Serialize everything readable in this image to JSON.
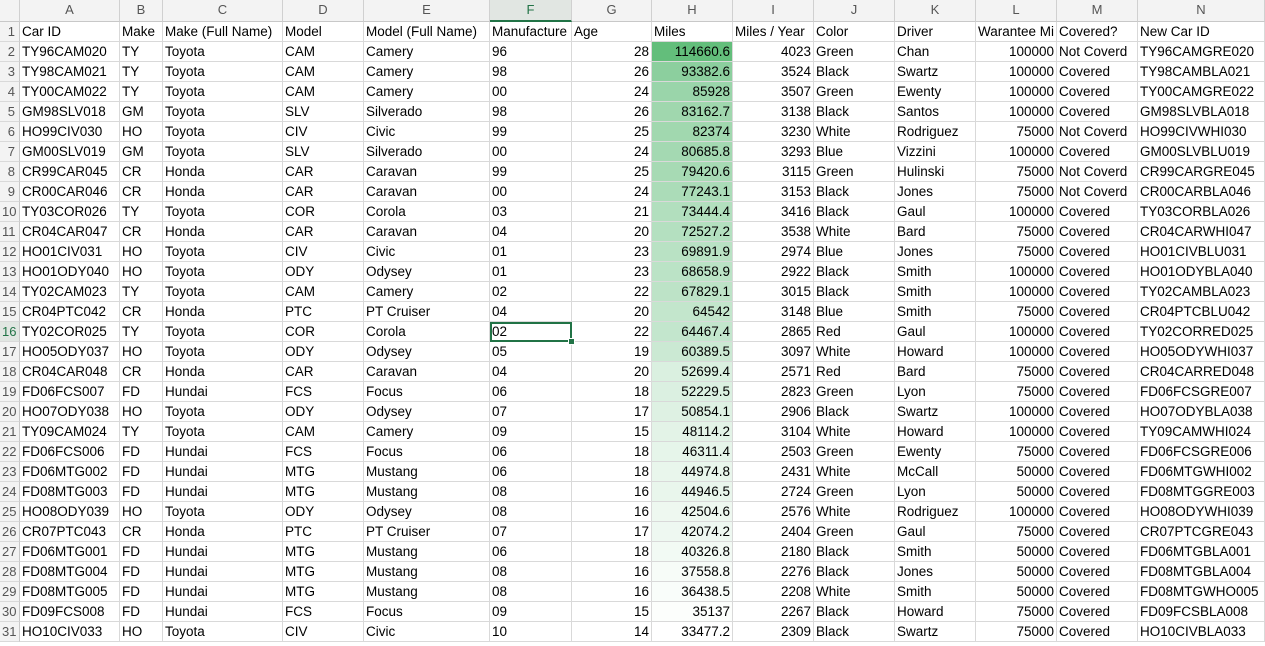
{
  "columns": [
    "A",
    "B",
    "C",
    "D",
    "E",
    "F",
    "G",
    "H",
    "I",
    "J",
    "K",
    "L",
    "M",
    "N"
  ],
  "selected_column": "F",
  "selected_row": "16",
  "headers": [
    "Car ID",
    "Make",
    "Make (Full Name)",
    "Model",
    "Model (Full Name)",
    "Manufacture",
    "Age",
    "Miles",
    "Miles / Year",
    "Color",
    "Driver",
    "Warantee Mi",
    "Covered?",
    "New Car ID"
  ],
  "row_numbers": [
    "1",
    "2",
    "3",
    "4",
    "5",
    "6",
    "7",
    "8",
    "9",
    "10",
    "11",
    "12",
    "13",
    "14",
    "15",
    "16",
    "17",
    "18",
    "19",
    "20",
    "21",
    "22",
    "23",
    "24",
    "25",
    "26",
    "27",
    "28",
    "29",
    "30",
    "31"
  ],
  "miles_color_scale": {
    "low": "#ffffff",
    "high": "#63be7b"
  },
  "miles_range": [
    33477.2,
    114660.6
  ],
  "rows": [
    [
      "TY96CAM020",
      "TY",
      "Toyota",
      "CAM",
      "Camery",
      "96",
      "28",
      "114660.6",
      "4023",
      "Green",
      "Chan",
      "100000",
      "Not Coverd",
      "TY96CAMGRE020"
    ],
    [
      "TY98CAM021",
      "TY",
      "Toyota",
      "CAM",
      "Camery",
      "98",
      "26",
      "93382.6",
      "3524",
      "Black",
      "Swartz",
      "100000",
      "Covered",
      "TY98CAMBLA021"
    ],
    [
      "TY00CAM022",
      "TY",
      "Toyota",
      "CAM",
      "Camery",
      "00",
      "24",
      "85928",
      "3507",
      "Green",
      "Ewenty",
      "100000",
      "Covered",
      "TY00CAMGRE022"
    ],
    [
      "GM98SLV018",
      "GM",
      "Toyota",
      "SLV",
      "Silverado",
      "98",
      "26",
      "83162.7",
      "3138",
      "Black",
      "Santos",
      "100000",
      "Covered",
      "GM98SLVBLA018"
    ],
    [
      "HO99CIV030",
      "HO",
      "Toyota",
      "CIV",
      "Civic",
      "99",
      "25",
      "82374",
      "3230",
      "White",
      "Rodriguez",
      "75000",
      "Not Coverd",
      "HO99CIVWHI030"
    ],
    [
      "GM00SLV019",
      "GM",
      "Toyota",
      "SLV",
      "Silverado",
      "00",
      "24",
      "80685.8",
      "3293",
      "Blue",
      "Vizzini",
      "100000",
      "Covered",
      "GM00SLVBLU019"
    ],
    [
      "CR99CAR045",
      "CR",
      "Honda",
      "CAR",
      "Caravan",
      "99",
      "25",
      "79420.6",
      "3115",
      "Green",
      "Hulinski",
      "75000",
      "Not Coverd",
      "CR99CARGRE045"
    ],
    [
      "CR00CAR046",
      "CR",
      "Honda",
      "CAR",
      "Caravan",
      "00",
      "24",
      "77243.1",
      "3153",
      "Black",
      "Jones",
      "75000",
      "Not Coverd",
      "CR00CARBLA046"
    ],
    [
      "TY03COR026",
      "TY",
      "Toyota",
      "COR",
      "Corola",
      "03",
      "21",
      "73444.4",
      "3416",
      "Black",
      "Gaul",
      "100000",
      "Covered",
      "TY03CORBLA026"
    ],
    [
      "CR04CAR047",
      "CR",
      "Honda",
      "CAR",
      "Caravan",
      "04",
      "20",
      "72527.2",
      "3538",
      "White",
      "Bard",
      "75000",
      "Covered",
      "CR04CARWHI047"
    ],
    [
      "HO01CIV031",
      "HO",
      "Toyota",
      "CIV",
      "Civic",
      "01",
      "23",
      "69891.9",
      "2974",
      "Blue",
      "Jones",
      "75000",
      "Covered",
      "HO01CIVBLU031"
    ],
    [
      "HO01ODY040",
      "HO",
      "Toyota",
      "ODY",
      "Odysey",
      "01",
      "23",
      "68658.9",
      "2922",
      "Black",
      "Smith",
      "100000",
      "Covered",
      "HO01ODYBLA040"
    ],
    [
      "TY02CAM023",
      "TY",
      "Toyota",
      "CAM",
      "Camery",
      "02",
      "22",
      "67829.1",
      "3015",
      "Black",
      "Smith",
      "100000",
      "Covered",
      "TY02CAMBLA023"
    ],
    [
      "CR04PTC042",
      "CR",
      "Honda",
      "PTC",
      "PT Cruiser",
      "04",
      "20",
      "64542",
      "3148",
      "Blue",
      "Smith",
      "75000",
      "Covered",
      "CR04PTCBLU042"
    ],
    [
      "TY02COR025",
      "TY",
      "Toyota",
      "COR",
      "Corola",
      "02",
      "22",
      "64467.4",
      "2865",
      "Red",
      "Gaul",
      "100000",
      "Covered",
      "TY02CORRED025"
    ],
    [
      "HO05ODY037",
      "HO",
      "Toyota",
      "ODY",
      "Odysey",
      "05",
      "19",
      "60389.5",
      "3097",
      "White",
      "Howard",
      "100000",
      "Covered",
      "HO05ODYWHI037"
    ],
    [
      "CR04CAR048",
      "CR",
      "Honda",
      "CAR",
      "Caravan",
      "04",
      "20",
      "52699.4",
      "2571",
      "Red",
      "Bard",
      "75000",
      "Covered",
      "CR04CARRED048"
    ],
    [
      "FD06FCS007",
      "FD",
      "Hundai",
      "FCS",
      "Focus",
      "06",
      "18",
      "52229.5",
      "2823",
      "Green",
      "Lyon",
      "75000",
      "Covered",
      "FD06FCSGRE007"
    ],
    [
      "HO07ODY038",
      "HO",
      "Toyota",
      "ODY",
      "Odysey",
      "07",
      "17",
      "50854.1",
      "2906",
      "Black",
      "Swartz",
      "100000",
      "Covered",
      "HO07ODYBLA038"
    ],
    [
      "TY09CAM024",
      "TY",
      "Toyota",
      "CAM",
      "Camery",
      "09",
      "15",
      "48114.2",
      "3104",
      "White",
      "Howard",
      "100000",
      "Covered",
      "TY09CAMWHI024"
    ],
    [
      "FD06FCS006",
      "FD",
      "Hundai",
      "FCS",
      "Focus",
      "06",
      "18",
      "46311.4",
      "2503",
      "Green",
      "Ewenty",
      "75000",
      "Covered",
      "FD06FCSGRE006"
    ],
    [
      "FD06MTG002",
      "FD",
      "Hundai",
      "MTG",
      "Mustang",
      "06",
      "18",
      "44974.8",
      "2431",
      "White",
      "McCall",
      "50000",
      "Covered",
      "FD06MTGWHI002"
    ],
    [
      "FD08MTG003",
      "FD",
      "Hundai",
      "MTG",
      "Mustang",
      "08",
      "16",
      "44946.5",
      "2724",
      "Green",
      "Lyon",
      "50000",
      "Covered",
      "FD08MTGGRE003"
    ],
    [
      "HO08ODY039",
      "HO",
      "Toyota",
      "ODY",
      "Odysey",
      "08",
      "16",
      "42504.6",
      "2576",
      "White",
      "Rodriguez",
      "100000",
      "Covered",
      "HO08ODYWHI039"
    ],
    [
      "CR07PTC043",
      "CR",
      "Honda",
      "PTC",
      "PT Cruiser",
      "07",
      "17",
      "42074.2",
      "2404",
      "Green",
      "Gaul",
      "75000",
      "Covered",
      "CR07PTCGRE043"
    ],
    [
      "FD06MTG001",
      "FD",
      "Hundai",
      "MTG",
      "Mustang",
      "06",
      "18",
      "40326.8",
      "2180",
      "Black",
      "Smith",
      "50000",
      "Covered",
      "FD06MTGBLA001"
    ],
    [
      "FD08MTG004",
      "FD",
      "Hundai",
      "MTG",
      "Mustang",
      "08",
      "16",
      "37558.8",
      "2276",
      "Black",
      "Jones",
      "50000",
      "Covered",
      "FD08MTGBLA004"
    ],
    [
      "FD08MTG005",
      "FD",
      "Hundai",
      "MTG",
      "Mustang",
      "08",
      "16",
      "36438.5",
      "2208",
      "White",
      "Smith",
      "50000",
      "Covered",
      "FD08MTGWHO005"
    ],
    [
      "FD09FCS008",
      "FD",
      "Hundai",
      "FCS",
      "Focus",
      "09",
      "15",
      "35137",
      "2267",
      "Black",
      "Howard",
      "75000",
      "Covered",
      "FD09FCSBLA008"
    ],
    [
      "HO10CIV033",
      "HO",
      "Toyota",
      "CIV",
      "Civic",
      "10",
      "14",
      "33477.2",
      "2309",
      "Black",
      "Swartz",
      "75000",
      "Covered",
      "HO10CIVBLA033"
    ]
  ]
}
